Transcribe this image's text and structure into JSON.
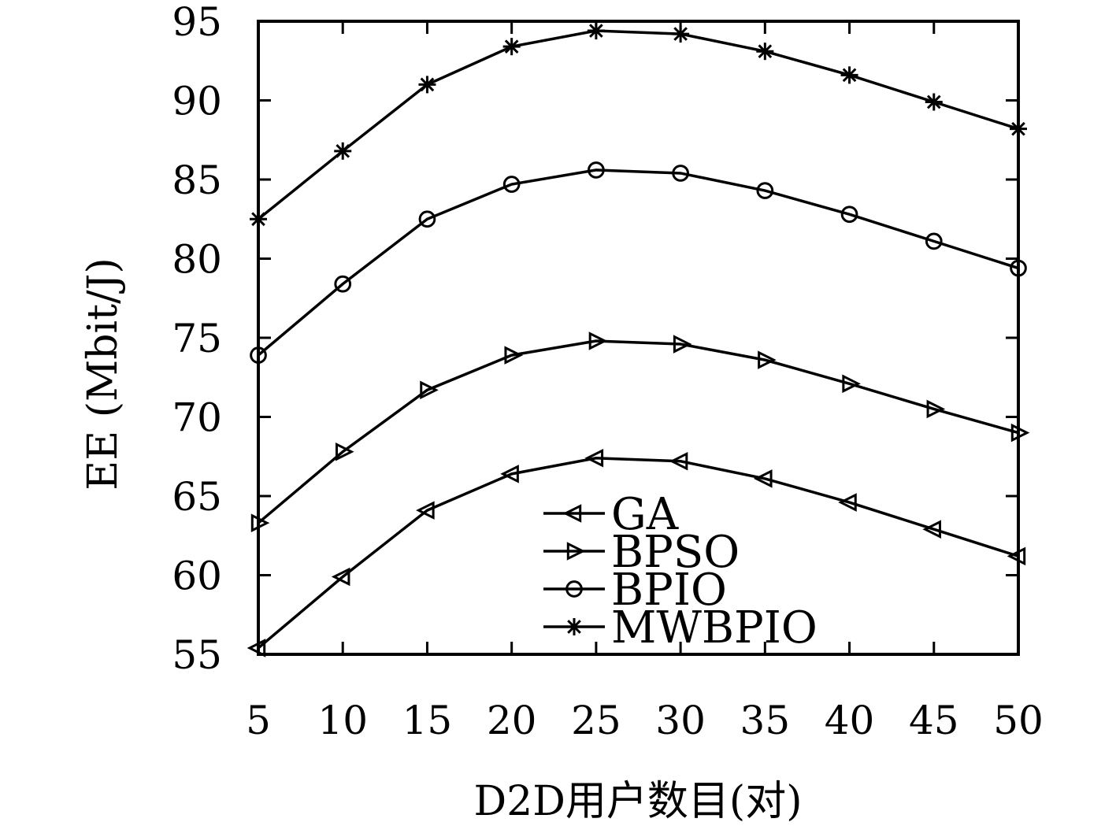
{
  "chart_data": {
    "type": "line",
    "xlabel": "D2D用户数目(对)",
    "ylabel": "EE (Mbit/J)",
    "x": [
      5,
      10,
      15,
      20,
      25,
      30,
      35,
      40,
      45,
      50
    ],
    "xticks": [
      "5",
      "10",
      "15",
      "20",
      "25",
      "30",
      "35",
      "40",
      "45",
      "50"
    ],
    "yticks": [
      "55",
      "60",
      "65",
      "70",
      "75",
      "80",
      "85",
      "90",
      "95"
    ],
    "xlim": [
      5,
      50
    ],
    "ylim": [
      55,
      95
    ],
    "grid": false,
    "legend_position": "bottom-center",
    "series": [
      {
        "name": "GA",
        "marker": "triangle-left",
        "values": [
          55.4,
          59.9,
          64.1,
          66.4,
          67.4,
          67.2,
          66.1,
          64.6,
          62.9,
          61.2
        ]
      },
      {
        "name": "BPSO",
        "marker": "triangle-right",
        "values": [
          63.3,
          67.8,
          71.7,
          73.9,
          74.8,
          74.6,
          73.6,
          72.1,
          70.5,
          69.0
        ]
      },
      {
        "name": "BPIO",
        "marker": "circle",
        "values": [
          73.9,
          78.4,
          82.5,
          84.7,
          85.6,
          85.4,
          84.3,
          82.8,
          81.1,
          79.4
        ]
      },
      {
        "name": "MWBPIO",
        "marker": "asterisk",
        "values": [
          82.5,
          86.8,
          91.0,
          93.4,
          94.4,
          94.2,
          93.1,
          91.6,
          89.9,
          88.2
        ]
      }
    ]
  }
}
